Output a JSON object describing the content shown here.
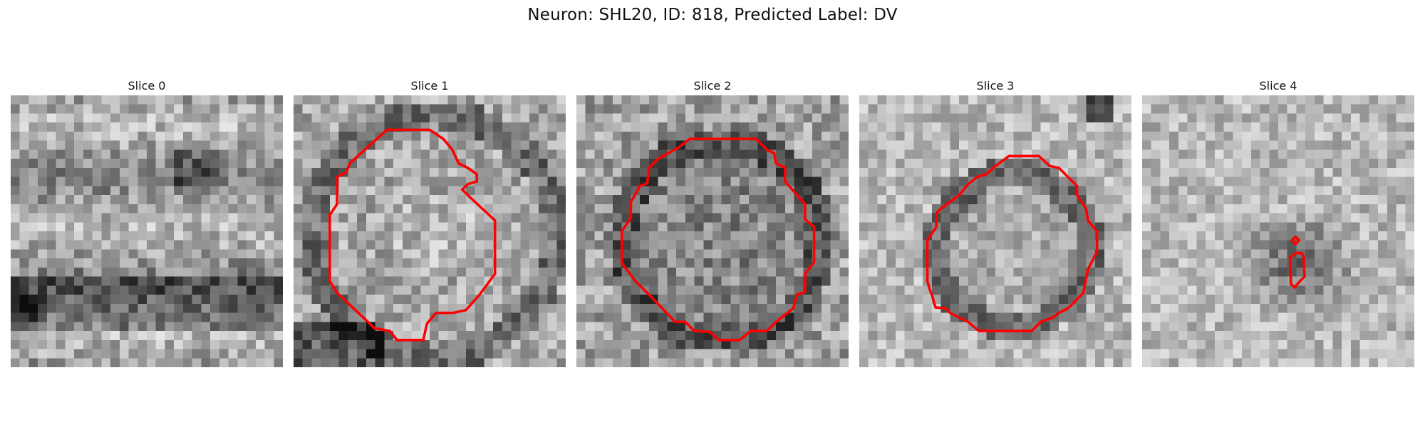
{
  "figure": {
    "title": "Neuron: SHL20, ID: 818, Predicted Label: DV"
  },
  "panels": [
    {
      "title": "Slice 0",
      "contour_color": "#ff0000"
    },
    {
      "title": "Slice 1",
      "contour_color": "#ff0000"
    },
    {
      "title": "Slice 2",
      "contour_color": "#ff0000"
    },
    {
      "title": "Slice 3",
      "contour_color": "#ff0000"
    },
    {
      "title": "Slice 4",
      "contour_color": "#ff0000"
    }
  ],
  "colormap": "gray"
}
